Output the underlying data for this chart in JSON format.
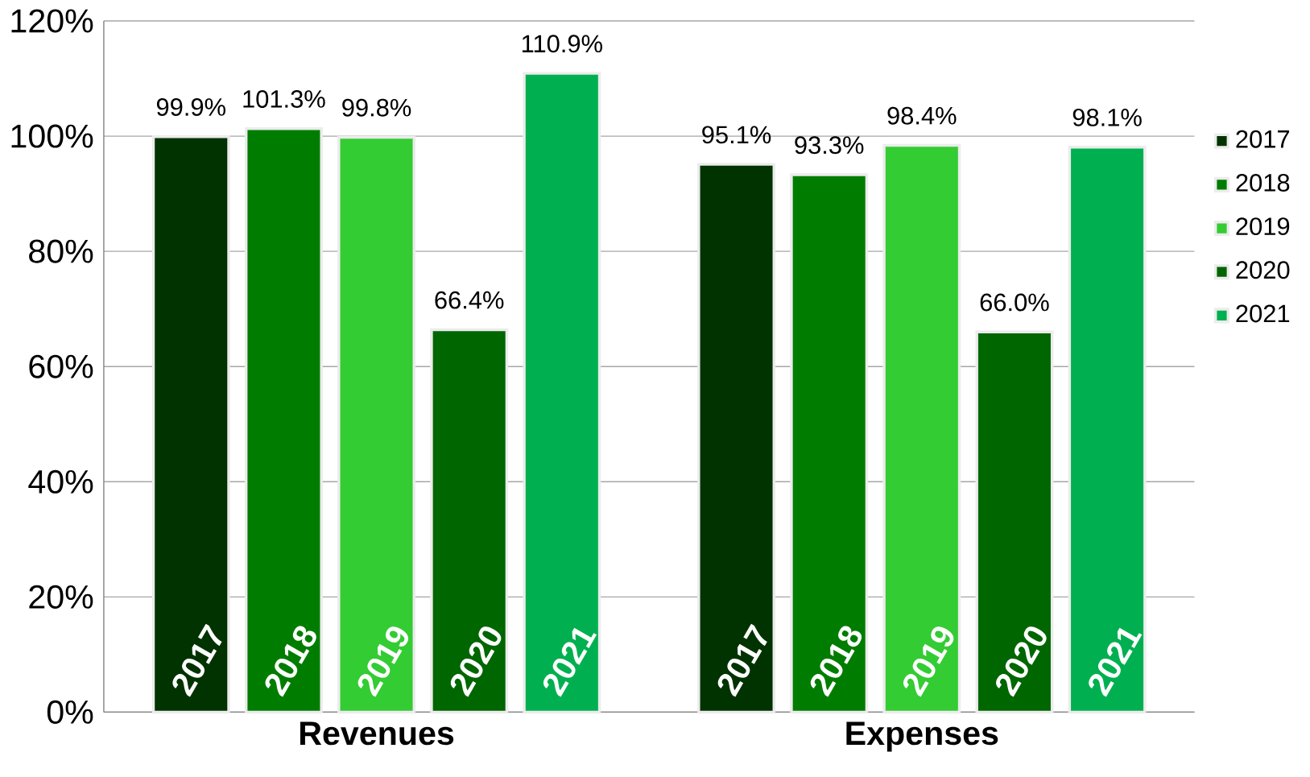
{
  "chart_data": {
    "type": "bar",
    "categories": [
      "Revenues",
      "Expenses"
    ],
    "series": [
      {
        "name": "2017",
        "color": "#003300",
        "values": [
          99.9,
          95.1
        ],
        "value_labels": [
          "99.9%",
          "95.1%"
        ]
      },
      {
        "name": "2018",
        "color": "#007d00",
        "values": [
          101.3,
          93.3
        ],
        "value_labels": [
          "101.3%",
          "93.3%"
        ]
      },
      {
        "name": "2019",
        "color": "#33cc33",
        "values": [
          99.8,
          98.4
        ],
        "value_labels": [
          "99.8%",
          "98.4%"
        ]
      },
      {
        "name": "2020",
        "color": "#006600",
        "values": [
          66.4,
          66.0
        ],
        "value_labels": [
          "66.4%",
          "66.0%"
        ]
      },
      {
        "name": "2021",
        "color": "#00b050",
        "values": [
          110.9,
          98.1
        ],
        "value_labels": [
          "110.9%",
          "98.1%"
        ]
      }
    ],
    "ylim": [
      0,
      120
    ],
    "yticks": [
      {
        "value": 0,
        "label": "0%"
      },
      {
        "value": 20,
        "label": "20%"
      },
      {
        "value": 40,
        "label": "40%"
      },
      {
        "value": 60,
        "label": "60%"
      },
      {
        "value": 80,
        "label": "80%"
      },
      {
        "value": 100,
        "label": "100%"
      },
      {
        "value": 120,
        "label": "120%"
      }
    ],
    "grid": "y",
    "legend": "right"
  }
}
